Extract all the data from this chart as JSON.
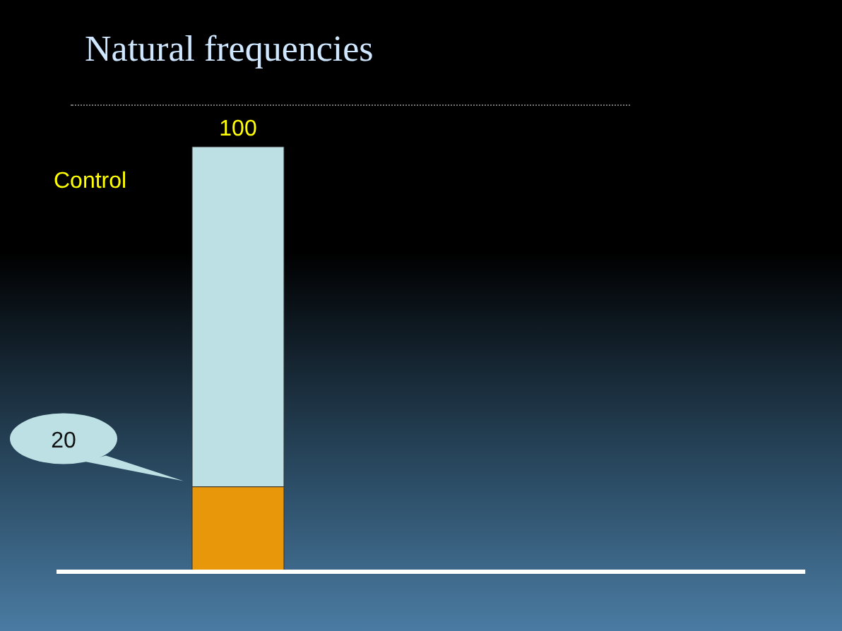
{
  "chart_data": {
    "type": "bar",
    "title": "Natural frequencies",
    "categories": [
      null
    ],
    "stacked": true,
    "series": [
      {
        "color": "#e8960a",
        "values": [
          20
        ],
        "value_labels": [
          "20"
        ]
      },
      {
        "color": "#bde0e4",
        "values": [
          80
        ]
      }
    ],
    "totals": [
      "100"
    ],
    "annotations": [
      "Control"
    ]
  }
}
